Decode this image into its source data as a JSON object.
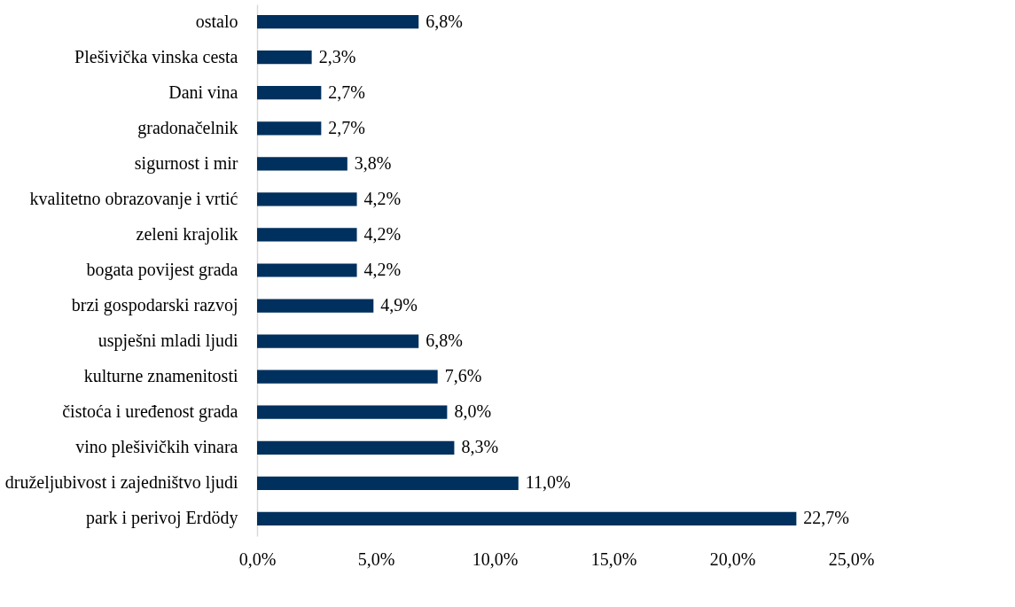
{
  "chart_data": {
    "type": "bar",
    "orientation": "horizontal",
    "categories": [
      "ostalo",
      "Plešivička vinska cesta",
      "Dani vina",
      "gradonačelnik",
      "sigurnost i mir",
      "kvalitetno obrazovanje i vrtić",
      "zeleni krajolik",
      "bogata povijest grada",
      "brzi gospodarski razvoj",
      "uspješni mladi ljudi",
      "kulturne znamenitosti",
      "čistoća i uređenost grada",
      "vino plešivičkih vinara",
      "druželjubivost i zajedništvo ljudi",
      "park i perivoj Erdödy"
    ],
    "values": [
      6.8,
      2.3,
      2.7,
      2.7,
      3.8,
      4.2,
      4.2,
      4.2,
      4.9,
      6.8,
      7.6,
      8.0,
      8.3,
      11.0,
      22.7
    ],
    "value_labels": [
      "6,8%",
      "2,3%",
      "2,7%",
      "2,7%",
      "3,8%",
      "4,2%",
      "4,2%",
      "4,2%",
      "4,9%",
      "6,8%",
      "7,6%",
      "8,0%",
      "8,3%",
      "11,0%",
      "22,7%"
    ],
    "color": "#00305e",
    "xlim": [
      0,
      25
    ],
    "xticks": [
      {
        "value": 0,
        "label": "0,0%"
      },
      {
        "value": 5,
        "label": "5,0%"
      },
      {
        "value": 10,
        "label": "10,0%"
      },
      {
        "value": 15,
        "label": "15,0%"
      },
      {
        "value": 20,
        "label": "20,0%"
      },
      {
        "value": 25,
        "label": "25,0%"
      }
    ],
    "grid": false
  }
}
